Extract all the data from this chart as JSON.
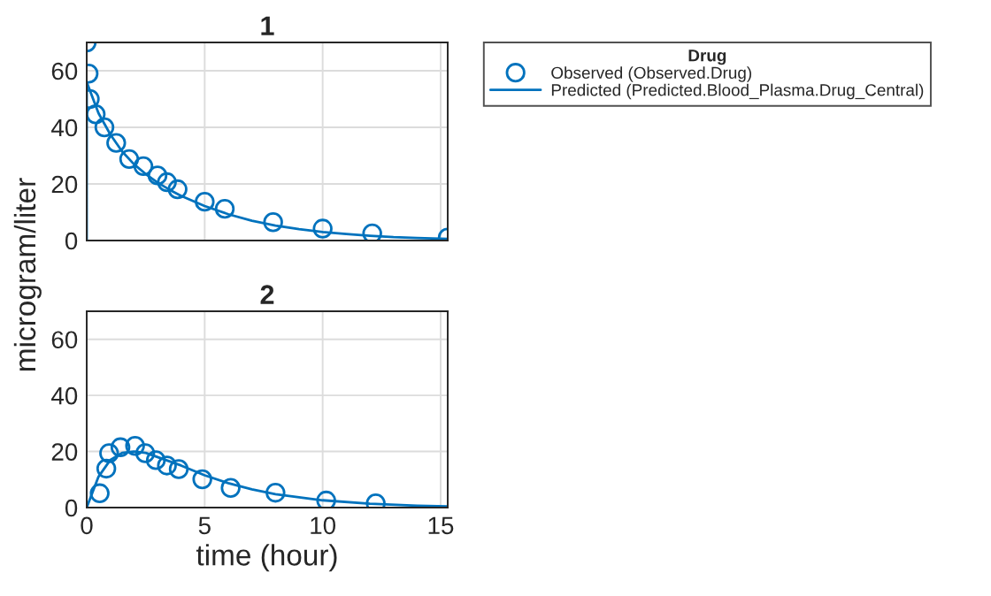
{
  "chart_data": [
    {
      "type": "scatter",
      "title": "1",
      "ylabel": "microgram/liter",
      "legend_title": "Drug",
      "legend": "right",
      "grid": true,
      "tick_labels": "y",
      "xlim": [
        0,
        15.3
      ],
      "xticks": [
        0,
        5,
        10,
        15
      ],
      "ylim": [
        0,
        70
      ],
      "yticks": [
        0,
        20,
        40,
        60
      ],
      "series": [
        {
          "name": "Observed (Observed.Drug)",
          "marker": "circle",
          "color": "#0072bd",
          "x": [
            0,
            0.08,
            0.13,
            0.38,
            0.75,
            1.25,
            1.8,
            2.4,
            3.0,
            3.4,
            3.85,
            5.0,
            5.85,
            7.9,
            10.0,
            12.1,
            15.3
          ],
          "values": [
            70,
            59,
            50,
            44.6,
            40,
            34.5,
            28.8,
            26.3,
            23,
            20.6,
            18.1,
            13.7,
            11.2,
            6.5,
            4.2,
            2.5,
            1.0
          ]
        },
        {
          "name": "Predicted (Predicted.Blood_Plasma.Drug_Central)",
          "type": "line",
          "marker": "none",
          "color": "#0072bd",
          "x": [
            0,
            0,
            0.5,
            1,
            1.5,
            2,
            2.5,
            3,
            3.5,
            4,
            5,
            6,
            7,
            8,
            9,
            10,
            11,
            12,
            13,
            14,
            15.3
          ],
          "values": [
            0,
            56,
            45,
            37.5,
            31.5,
            27,
            23.5,
            20.5,
            18,
            15.8,
            12.2,
            9.3,
            7,
            5.3,
            4,
            3,
            2.3,
            1.7,
            1.2,
            0.9,
            0.6
          ]
        }
      ]
    },
    {
      "type": "scatter",
      "title": "2",
      "xlabel": "time (hour)",
      "grid": true,
      "xlim": [
        0,
        15.3
      ],
      "xticks": [
        0,
        5,
        10,
        15
      ],
      "ylim": [
        0,
        70
      ],
      "yticks": [
        0,
        20,
        40,
        60
      ],
      "series": [
        {
          "marker": "circle",
          "color": "#0072bd",
          "x": [
            0.55,
            0.83,
            0.95,
            1.43,
            2.05,
            2.48,
            2.93,
            3.4,
            3.9,
            4.9,
            6.1,
            8.0,
            10.15,
            12.25
          ],
          "values": [
            5.1,
            13.9,
            19.4,
            21.5,
            22,
            19.4,
            16.9,
            15,
            13.7,
            10.1,
            7.0,
            5.3,
            2.5,
            1.5
          ]
        },
        {
          "type": "line",
          "marker": "none",
          "color": "#0072bd",
          "x": [
            0,
            0.5,
            1,
            1.5,
            2,
            2.5,
            3,
            4,
            5,
            6,
            7,
            8,
            10,
            12,
            14,
            15.3
          ],
          "values": [
            0,
            11,
            17,
            19.5,
            20,
            19.5,
            18,
            15,
            11.5,
            8.7,
            6.5,
            4.8,
            2.6,
            1.4,
            0.7,
            0.4
          ]
        }
      ]
    }
  ]
}
